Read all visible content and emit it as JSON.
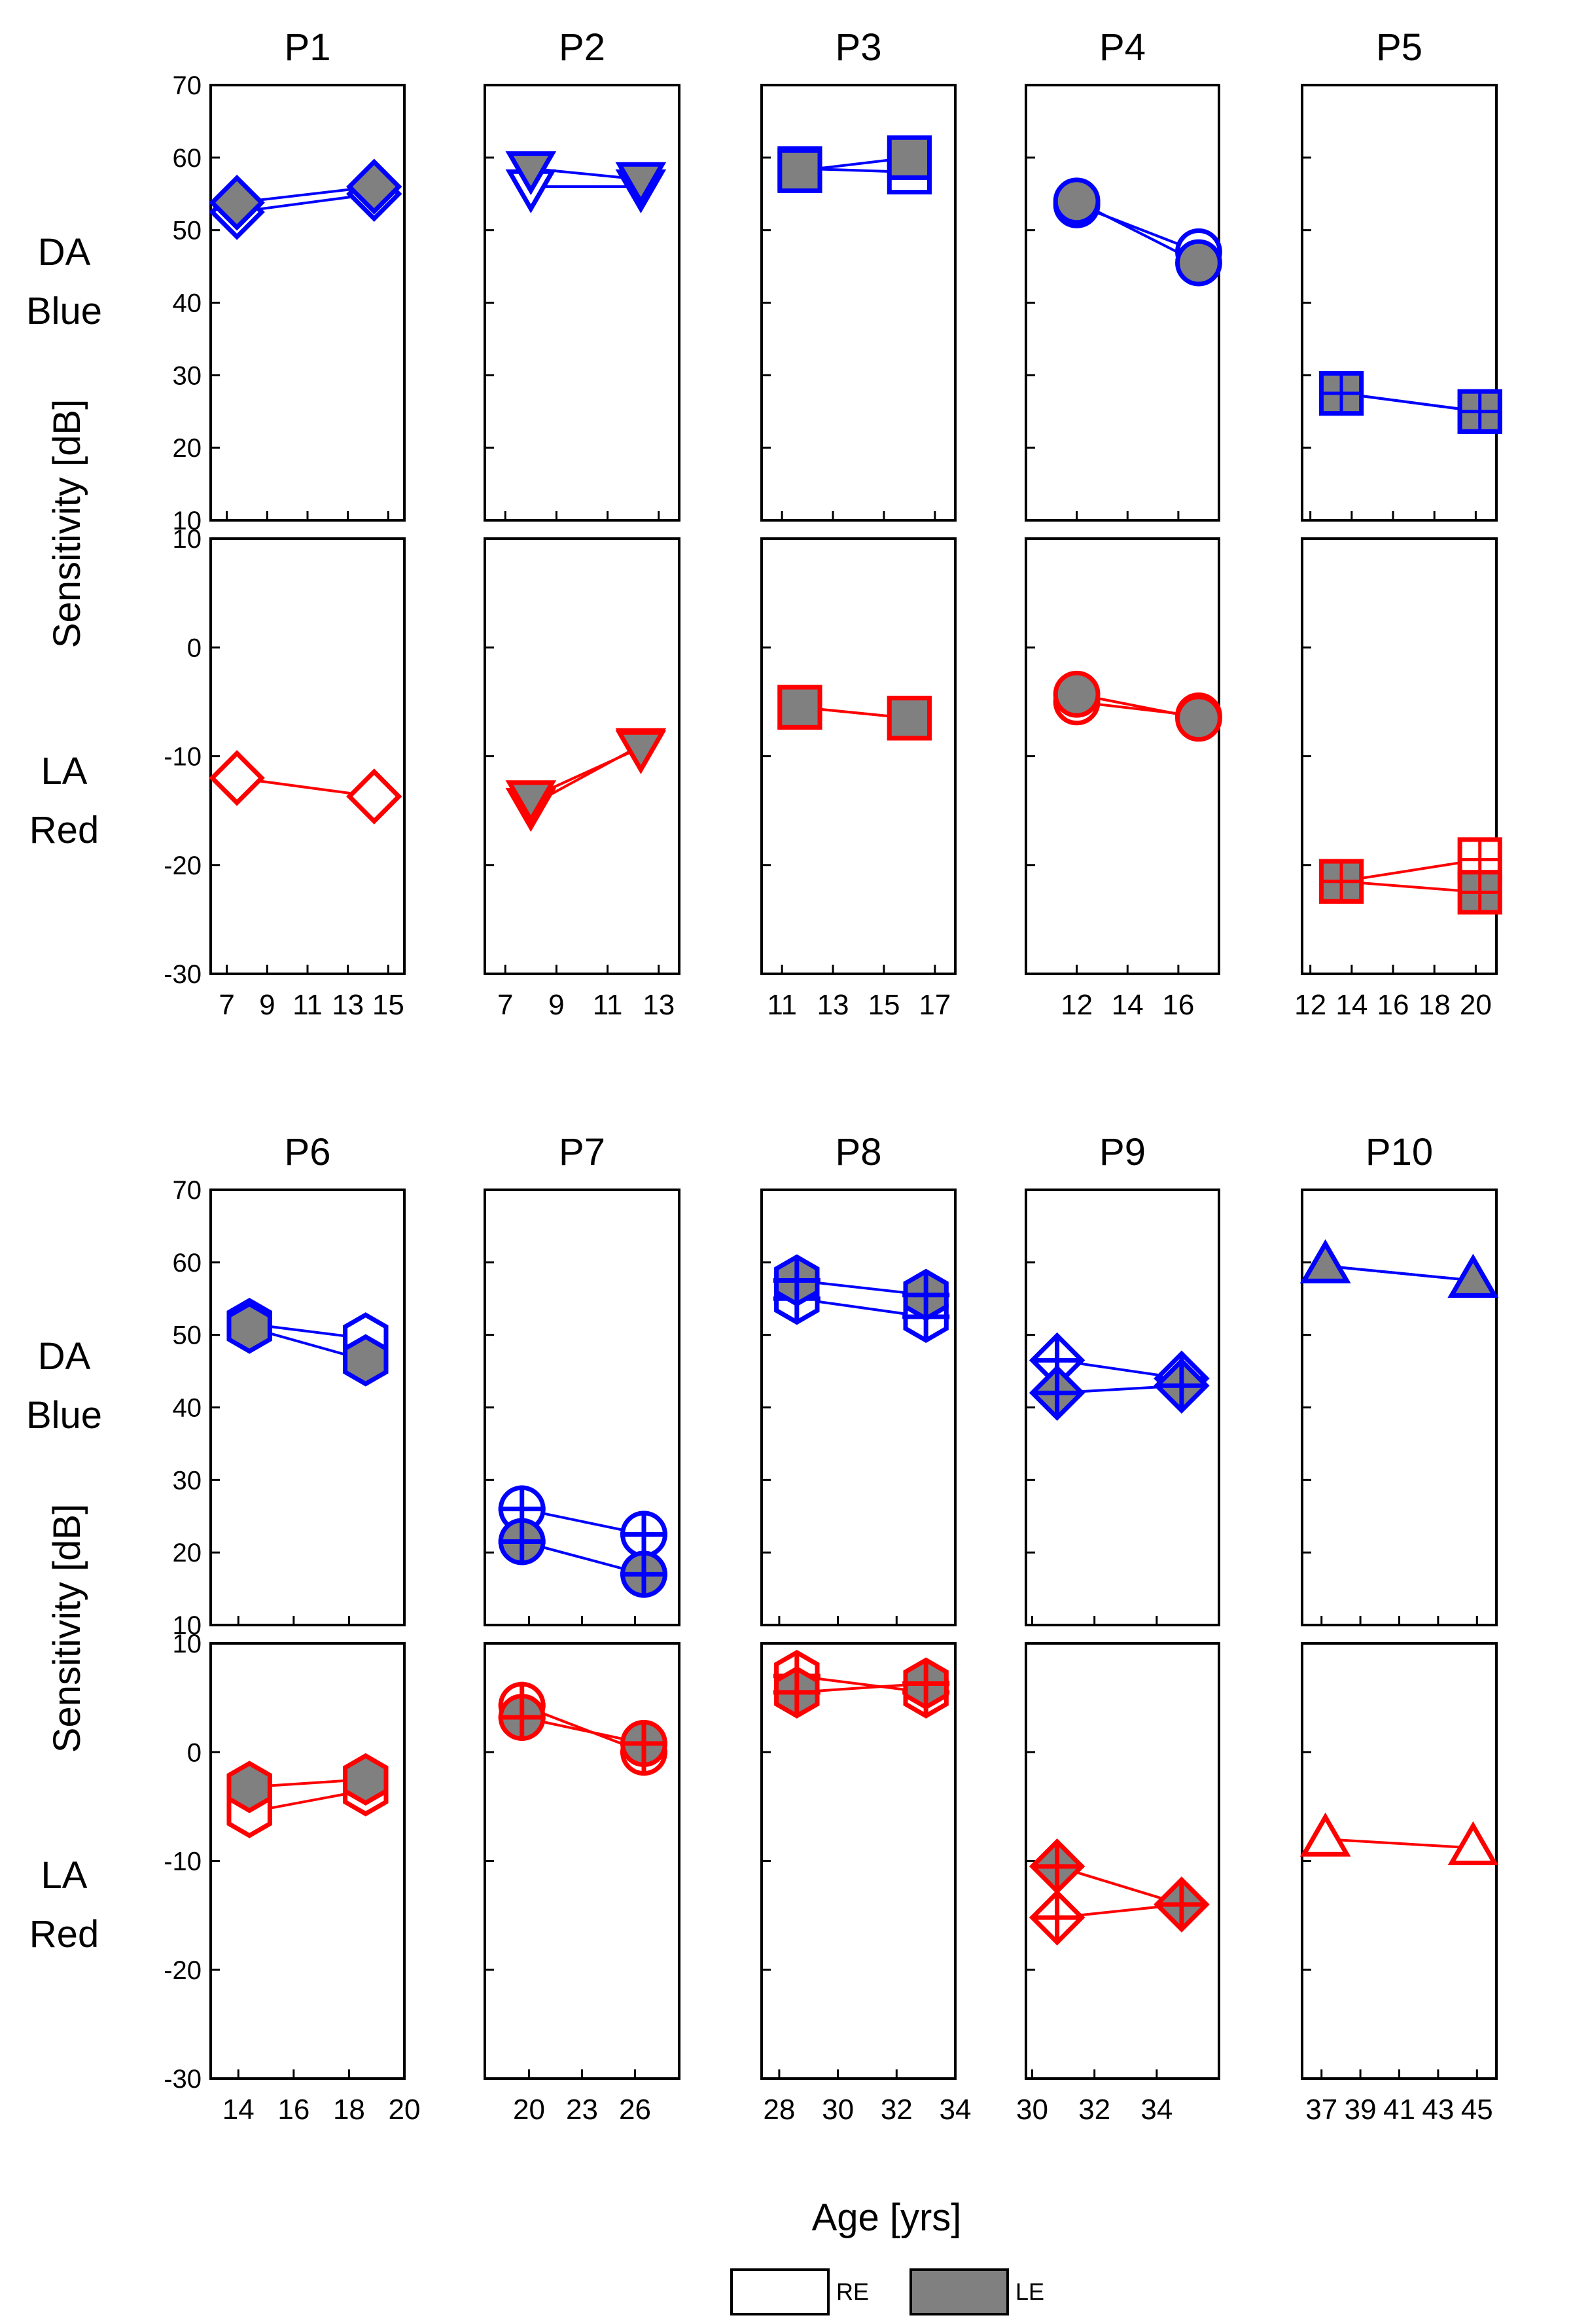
{
  "chart_data": {
    "type": "scatter",
    "title": "",
    "xlabel": "Age [yrs]",
    "ylabel": "Sensitivity [dB]",
    "rows": [
      {
        "top": "DA",
        "bottom": "Blue",
        "ylim": [
          10,
          70
        ],
        "yticks": [
          10,
          20,
          30,
          40,
          50,
          60,
          70
        ],
        "color": "#0000ff"
      },
      {
        "top": "LA",
        "bottom": "Red",
        "ylim": [
          -30,
          10
        ],
        "yticks": [
          -30,
          -20,
          -10,
          0,
          10
        ],
        "color": "#ff0000"
      }
    ],
    "legend": {
      "re": "RE",
      "le": "LE",
      "placement": "bottom-center"
    },
    "colors": {
      "blue": "#0000ff",
      "red": "#ff0000",
      "le_fill": "#808080",
      "re_fill": "#ffffff"
    },
    "panels": [
      {
        "name": "P1",
        "marker": "diamond",
        "xlim": [
          6.2,
          15.8
        ],
        "xticks": [
          7,
          9,
          11,
          13,
          15
        ],
        "x": [
          7.5,
          14.3
        ],
        "blue": {
          "RE": [
            52.5,
            55
          ],
          "LE": [
            53.8,
            56
          ]
        },
        "red": {
          "RE": [
            -12,
            -13.7
          ],
          "LE": null
        }
      },
      {
        "name": "P2",
        "marker": "triangle-down",
        "xlim": [
          6.2,
          13.8
        ],
        "xticks": [
          7,
          9,
          11,
          13
        ],
        "x": [
          8,
          12.3
        ],
        "blue": {
          "RE": [
            56,
            56
          ],
          "LE": [
            58.5,
            57
          ]
        },
        "red": {
          "RE": [
            -14.5,
            -9
          ],
          "LE": [
            -13.8,
            -9.2
          ]
        }
      },
      {
        "name": "P3",
        "marker": "square",
        "xlim": [
          10.2,
          17.8
        ],
        "xticks": [
          11,
          13,
          15,
          17
        ],
        "x": [
          11.7,
          16
        ],
        "blue": {
          "RE": [
            58.5,
            58
          ],
          "LE": [
            58.2,
            60
          ]
        },
        "red": {
          "RE": [
            -5.5,
            -6.5
          ],
          "LE": [
            -5.5,
            -6.5
          ]
        }
      },
      {
        "name": "P4",
        "marker": "circle",
        "xlim": [
          10.0,
          17.6
        ],
        "xticks": [
          12,
          14,
          16
        ],
        "x": [
          12,
          16.8
        ],
        "blue": {
          "RE": [
            53.5,
            47
          ],
          "LE": [
            54,
            45.5
          ]
        },
        "red": {
          "RE": [
            -5,
            -6.3
          ],
          "LE": [
            -4.3,
            -6.5
          ]
        }
      },
      {
        "name": "P5",
        "marker": "square-grid",
        "xlim": [
          11.6,
          21.0
        ],
        "xticks": [
          12,
          14,
          16,
          18,
          20
        ],
        "x": [
          13.5,
          20.2
        ],
        "blue": {
          "RE": [
            27.5,
            25
          ],
          "LE": [
            27.5,
            25
          ]
        },
        "red": {
          "RE": [
            -21.5,
            -19.5
          ],
          "LE": [
            -21.5,
            -22.5
          ]
        }
      },
      {
        "name": "P6",
        "marker": "hexagon",
        "xlim": [
          13,
          20
        ],
        "xticks": [
          14,
          16,
          18,
          20
        ],
        "x": [
          14.4,
          18.6
        ],
        "blue": {
          "RE": [
            51.5,
            49.5
          ],
          "LE": [
            51,
            46.5
          ]
        },
        "red": {
          "RE": [
            -5.5,
            -3.5
          ],
          "LE": [
            -3.2,
            -2.5
          ]
        }
      },
      {
        "name": "P7",
        "marker": "circle-plus",
        "xlim": [
          17.5,
          28.5
        ],
        "xticks": [
          20,
          23,
          26
        ],
        "x": [
          19.6,
          26.5
        ],
        "blue": {
          "RE": [
            26,
            22.5
          ],
          "LE": [
            21.5,
            17
          ]
        },
        "red": {
          "RE": [
            4.3,
            0
          ],
          "LE": [
            3.2,
            0.8
          ]
        }
      },
      {
        "name": "P8",
        "marker": "hexagon-plus",
        "xlim": [
          27.4,
          34
        ],
        "xticks": [
          28,
          30,
          32,
          34
        ],
        "x": [
          28.6,
          33
        ],
        "blue": {
          "RE": [
            55,
            52.5
          ],
          "LE": [
            57.5,
            55.5
          ]
        },
        "red": {
          "RE": [
            7,
            5.5
          ],
          "LE": [
            5.5,
            6.3
          ]
        }
      },
      {
        "name": "P9",
        "marker": "diamond-plus",
        "xlim": [
          29.8,
          36
        ],
        "xticks": [
          30,
          32,
          34
        ],
        "x": [
          30.8,
          34.8
        ],
        "blue": {
          "RE": [
            46.5,
            44
          ],
          "LE": [
            42,
            43
          ]
        },
        "red": {
          "RE": [
            -15.2,
            -14
          ],
          "LE": [
            -10.5,
            -14
          ]
        }
      },
      {
        "name": "P10",
        "marker": "triangle-up",
        "xlim": [
          36,
          46
        ],
        "xticks": [
          37,
          39,
          41,
          43,
          45
        ],
        "x": [
          37.2,
          44.8
        ],
        "blue": {
          "RE": [
            59.5,
            57.5
          ],
          "LE": [
            59.5,
            57.5
          ]
        },
        "red": {
          "RE": [
            -8,
            -8.8
          ],
          "LE": null
        }
      }
    ]
  }
}
